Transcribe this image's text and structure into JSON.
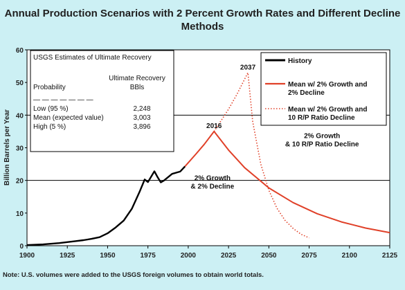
{
  "chart_data": {
    "type": "line",
    "title": "Annual Production Scenarios with 2 Percent Growth Rates and Different Decline Methods",
    "xlabel": "",
    "ylabel": "Billion Barrels per Year",
    "xlim": [
      1900,
      2125
    ],
    "ylim": [
      0,
      60
    ],
    "xticks": [
      "1900",
      "1925",
      "1950",
      "1975",
      "2000",
      "2025",
      "2050",
      "2075",
      "2100",
      "2125"
    ],
    "yticks": [
      "0",
      "10",
      "20",
      "30",
      "40",
      "50",
      "60"
    ],
    "gridlines_y": [
      20,
      40
    ],
    "series": [
      {
        "name": "History",
        "style": "solid",
        "color": "#000000",
        "x": [
          1900,
          1910,
          1920,
          1925,
          1930,
          1935,
          1940,
          1945,
          1950,
          1955,
          1960,
          1965,
          1970,
          1973,
          1975,
          1979,
          1981,
          1983,
          1985,
          1990,
          1995,
          1998
        ],
        "y": [
          0.2,
          0.4,
          0.8,
          1.1,
          1.4,
          1.7,
          2.1,
          2.6,
          3.8,
          5.6,
          7.7,
          11.3,
          16.7,
          20.3,
          19.5,
          22.8,
          21.0,
          19.4,
          20.0,
          22.0,
          22.7,
          24.3
        ]
      },
      {
        "name": "Mean w/ 2% Growth and 2% Decline",
        "style": "solid",
        "color": "#e04028",
        "x": [
          1998,
          2005,
          2010,
          2016,
          2025,
          2035,
          2050,
          2065,
          2080,
          2095,
          2110,
          2125
        ],
        "y": [
          24.3,
          28.2,
          31.1,
          35.0,
          29.3,
          23.9,
          17.7,
          13.2,
          9.8,
          7.3,
          5.4,
          4.0
        ]
      },
      {
        "name": "Mean w/ 2% Growth and 10 R/P Ratio Decline",
        "style": "dotted",
        "color": "#e04028",
        "x": [
          2016,
          2025,
          2030,
          2037,
          2040,
          2045,
          2050,
          2055,
          2060,
          2065,
          2070,
          2075
        ],
        "y": [
          35.0,
          41.8,
          46.2,
          53.0,
          38.0,
          25.0,
          17.0,
          11.5,
          7.8,
          5.3,
          3.5,
          2.4
        ]
      }
    ],
    "annotations": [
      {
        "text": "2037",
        "x": 2037,
        "y": 54
      },
      {
        "text": "2016",
        "x": 2016,
        "y": 36
      },
      {
        "lines": [
          "2% Growth",
          "& 2% Decline"
        ],
        "x": 2015,
        "y": 20
      },
      {
        "lines": [
          "2% Growth",
          "& 10 R/P Ratio Decline"
        ],
        "x": 2083,
        "y": 33
      }
    ],
    "legend": {
      "position": "top-right",
      "items": [
        {
          "lines": [
            "History"
          ],
          "style": "solid",
          "color": "#000000"
        },
        {
          "lines": [
            "Mean w/ 2% Growth and",
            "2% Decline"
          ],
          "style": "solid",
          "color": "#e04028"
        },
        {
          "lines": [
            "Mean w/ 2% Growth and",
            "10 R/P Ratio Decline"
          ],
          "style": "dotted",
          "color": "#e04028"
        }
      ]
    },
    "table": {
      "title": "USGS Estimates of Ultimate Recovery",
      "col1_header": "Probability",
      "col2_header": [
        "Ultimate Recovery",
        "BBls"
      ],
      "separator": "— — — — — — —",
      "rows": [
        {
          "label": "Low (95 %)",
          "value": "2,248"
        },
        {
          "label": "Mean (expected value)",
          "value": "3,003"
        },
        {
          "label": "High (5 %)",
          "value": "3,896"
        }
      ]
    }
  },
  "note": "Note:  U.S. volumes were added to the USGS foreign volumes to obtain world totals."
}
